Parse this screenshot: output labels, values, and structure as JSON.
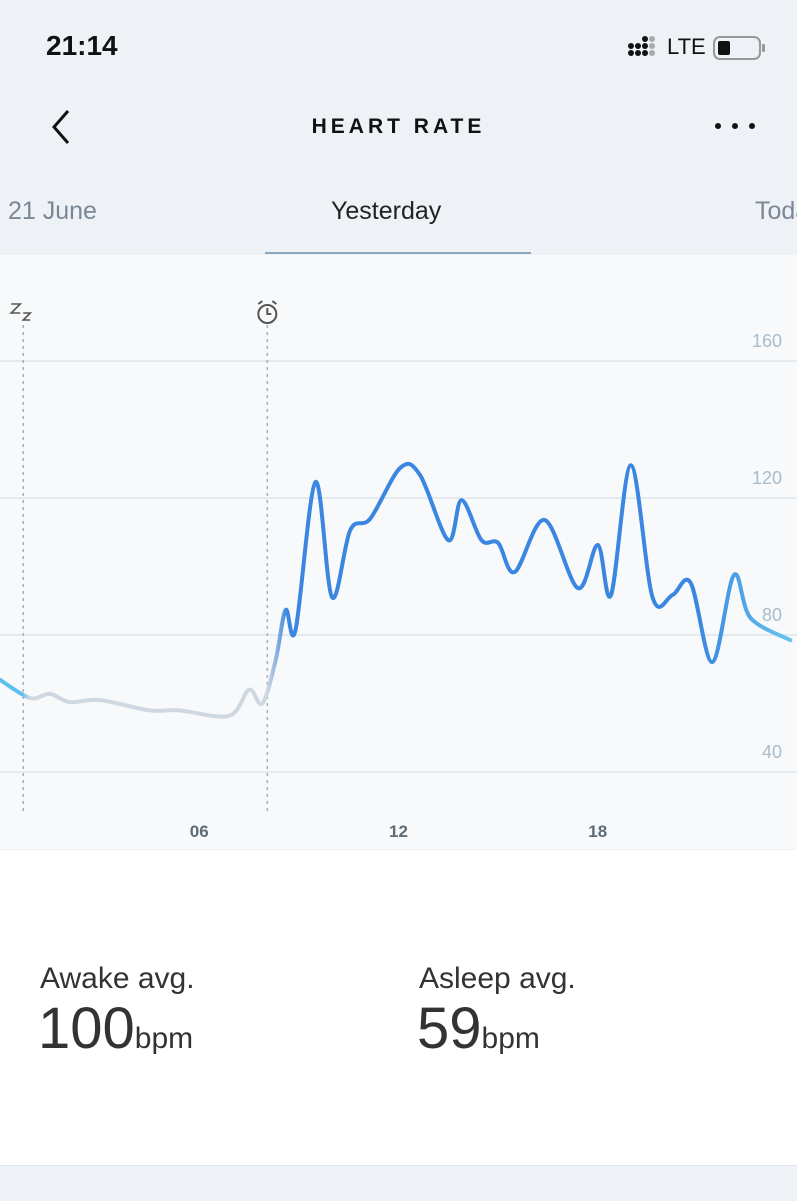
{
  "status_bar": {
    "time": "21:14",
    "network": "LTE"
  },
  "header": {
    "title": "HEART RATE"
  },
  "tabs": [
    "21 June",
    "Yesterday",
    "Today"
  ],
  "chart_data": {
    "type": "line",
    "x": [
      0,
      0.9,
      1.5,
      2.1,
      3.0,
      4.5,
      5.4,
      6.9,
      7.5,
      7.9,
      8.3,
      8.6,
      8.9,
      9.5,
      10.0,
      10.55,
      11.15,
      12.05,
      12.65,
      13.5,
      13.9,
      14.5,
      15.0,
      15.5,
      16.4,
      17.4,
      18.0,
      18.4,
      19.0,
      19.65,
      20.25,
      20.8,
      21.45,
      22.1,
      22.6,
      23.8
    ],
    "series": [
      {
        "color": "#3a86e0",
        "values": [
          66.9,
          61.6,
          62.8,
          60.4,
          61,
          58,
          58,
          56.4,
          64,
          60,
          72.7,
          87.3,
          81.5,
          124.7,
          91,
          110.7,
          114,
          128.8,
          126.7,
          107.7,
          119.4,
          107.7,
          106.9,
          98.4,
          113.6,
          93.7,
          106.3,
          91.7,
          129.6,
          91,
          91.7,
          95.2,
          72.1,
          97.5,
          85,
          78.5
        ]
      }
    ],
    "sleep_color": "#cfd7e1",
    "sleep_x": 0.7,
    "wake_x": 8.05,
    "xlim": [
      0,
      24
    ],
    "ylim": [
      17.2,
      191
    ],
    "xticks": [
      {
        "value": 6,
        "label": "06"
      },
      {
        "value": 12,
        "label": "12"
      },
      {
        "value": 18,
        "label": "18"
      }
    ],
    "yticks": [
      40,
      80,
      120,
      160
    ],
    "grid": true
  },
  "stats": [
    {
      "label": "Awake avg.",
      "value": 100,
      "unit": "bpm"
    },
    {
      "label": "Asleep avg.",
      "value": 59,
      "unit": "bpm"
    }
  ]
}
